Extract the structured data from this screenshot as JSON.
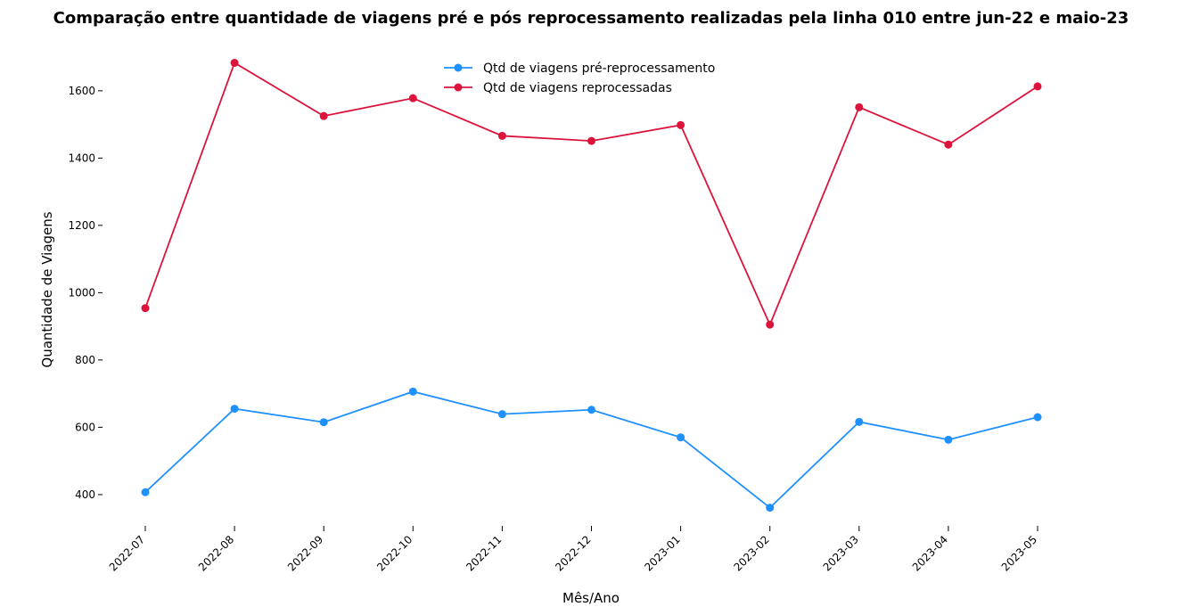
{
  "chart_data": {
    "type": "line",
    "title": "Comparação entre quantidade de viagens pré e pós reprocessamento realizadas pela linha 010 entre jun-22 e maio-23",
    "xlabel": "Mês/Ano",
    "ylabel": "Quantidade de Viagens",
    "categories": [
      "2022-07",
      "2022-08",
      "2022-09",
      "2022-10",
      "2022-11",
      "2022-12",
      "2023-01",
      "2023-02",
      "2023-03",
      "2023-04",
      "2023-05"
    ],
    "yticks": [
      400,
      600,
      800,
      1000,
      1200,
      1400,
      1600
    ],
    "ylim": [
      307,
      1732
    ],
    "grid": false,
    "legend_position": "top-center",
    "series": [
      {
        "name": "Qtd de viagens pré-reprocessamento",
        "color": "#1e90ff",
        "values": [
          407,
          655,
          615,
          706,
          639,
          652,
          570,
          361,
          616,
          563,
          630
        ]
      },
      {
        "name": "Qtd de viagens reprocessadas",
        "color": "#dc143c",
        "values": [
          954,
          1683,
          1525,
          1578,
          1466,
          1451,
          1498,
          905,
          1551,
          1440,
          1613
        ]
      }
    ]
  }
}
